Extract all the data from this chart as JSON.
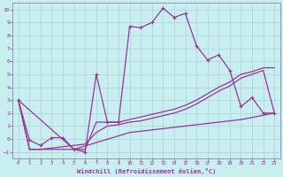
{
  "xlabel": "Windchill (Refroidissement éolien,°C)",
  "bg_color": "#c8eef0",
  "grid_color": "#b0d8dc",
  "line_color": "#993399",
  "spine_color": "#8888aa",
  "xlim": [
    -0.5,
    23.5
  ],
  "ylim": [
    -1.5,
    10.5
  ],
  "xtick_vals": [
    0,
    1,
    2,
    3,
    4,
    5,
    6,
    7,
    8,
    9,
    10,
    11,
    12,
    13,
    14,
    15,
    16,
    17,
    18,
    19,
    20,
    21,
    22,
    23
  ],
  "ytick_vals": [
    -1,
    0,
    1,
    2,
    3,
    4,
    5,
    6,
    7,
    8,
    9,
    10
  ],
  "line1_x": [
    0,
    1,
    2,
    3,
    4,
    5,
    6,
    7,
    8,
    9,
    10,
    11,
    12,
    13,
    14,
    15,
    16,
    17,
    18,
    19,
    20,
    21,
    22,
    23
  ],
  "line1_y": [
    3.0,
    -0.1,
    -0.5,
    0.1,
    0.1,
    -0.8,
    -1.0,
    5.0,
    1.3,
    1.3,
    8.7,
    8.6,
    9.0,
    10.1,
    9.4,
    9.7,
    7.2,
    6.1,
    6.5,
    5.3,
    2.5,
    3.2,
    2.0,
    2.0
  ],
  "line2_x": [
    0,
    1,
    2,
    3,
    4,
    5,
    6,
    7,
    8,
    9,
    10,
    11,
    12,
    13,
    14,
    15,
    16,
    17,
    18,
    19,
    20,
    21,
    22,
    23
  ],
  "line2_y": [
    3.0,
    -0.8,
    -0.8,
    -0.8,
    -0.8,
    -0.8,
    -0.8,
    1.3,
    1.3,
    1.3,
    1.5,
    1.7,
    1.9,
    2.1,
    2.3,
    2.6,
    3.0,
    3.5,
    4.0,
    4.4,
    5.0,
    5.2,
    5.5,
    5.5
  ],
  "line3_x": [
    0,
    1,
    2,
    3,
    4,
    5,
    6,
    7,
    8,
    9,
    10,
    11,
    12,
    13,
    14,
    15,
    16,
    17,
    18,
    19,
    20,
    21,
    22,
    23
  ],
  "line3_y": [
    3.0,
    -0.8,
    -0.8,
    -0.7,
    -0.6,
    -0.5,
    -0.4,
    0.5,
    1.0,
    1.1,
    1.3,
    1.4,
    1.6,
    1.8,
    2.0,
    2.3,
    2.7,
    3.2,
    3.7,
    4.1,
    4.7,
    5.0,
    5.3,
    2.0
  ],
  "line4_x": [
    0,
    5,
    10,
    15,
    20,
    23
  ],
  "line4_y": [
    3.0,
    -0.8,
    0.5,
    1.0,
    1.5,
    2.0
  ]
}
